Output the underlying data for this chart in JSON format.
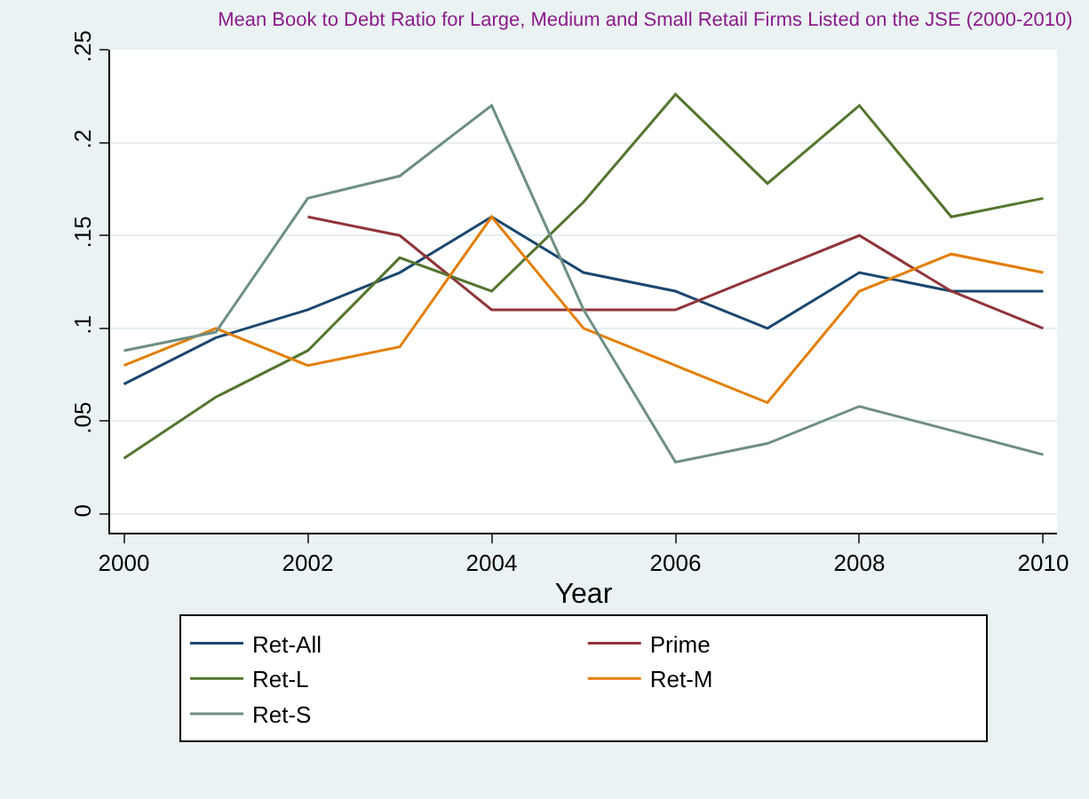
{
  "chart_data": {
    "type": "line",
    "title": "Mean Book to Debt Ratio for Large, Medium and Small Retail Firms Listed on the JSE (2000-2010)",
    "xlabel": "Year",
    "x": [
      2000,
      2001,
      2002,
      2003,
      2004,
      2005,
      2006,
      2007,
      2008,
      2009,
      2010
    ],
    "series": [
      {
        "name": "Ret-All",
        "color": "#1a476f",
        "values": [
          0.07,
          0.095,
          0.11,
          0.13,
          0.16,
          0.13,
          0.12,
          0.1,
          0.13,
          0.12,
          0.12
        ]
      },
      {
        "name": "Prime",
        "color": "#90353b",
        "values": [
          null,
          null,
          0.16,
          0.15,
          0.11,
          0.11,
          0.11,
          0.13,
          0.15,
          0.12,
          0.1
        ]
      },
      {
        "name": "Ret-L",
        "color": "#55752f",
        "values": [
          0.03,
          0.063,
          0.088,
          0.138,
          0.12,
          0.168,
          0.226,
          0.178,
          0.22,
          0.16,
          0.17
        ]
      },
      {
        "name": "Ret-M",
        "color": "#e37e00",
        "values": [
          0.08,
          0.1,
          0.08,
          0.09,
          0.16,
          0.1,
          0.08,
          0.06,
          0.12,
          0.14,
          0.13
        ]
      },
      {
        "name": "Ret-S",
        "color": "#6e8e84",
        "values": [
          0.088,
          0.098,
          0.17,
          0.182,
          0.22,
          0.11,
          0.028,
          0.038,
          0.058,
          0.045,
          0.032
        ]
      }
    ],
    "xlim": [
      1999.85,
      2010.15
    ],
    "xticks": [
      2000,
      2002,
      2004,
      2006,
      2008,
      2010
    ],
    "ylim": [
      -0.01,
      0.25
    ],
    "yticks": [
      0,
      {
        "value": 0.05,
        "label": ".05"
      },
      {
        "value": 0.1,
        "label": ".1"
      },
      {
        "value": 0.15,
        "label": ".15"
      },
      {
        "value": 0.2,
        "label": ".2"
      },
      {
        "value": 0.25,
        "label": ".25"
      }
    ],
    "grid": "y",
    "legend": "bottom",
    "marker": "none",
    "line_style": "solid"
  }
}
